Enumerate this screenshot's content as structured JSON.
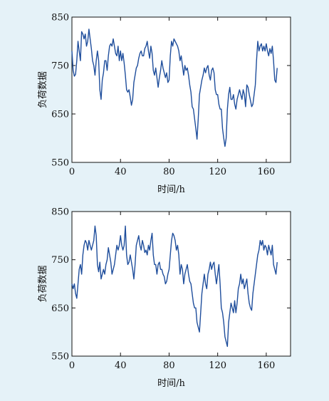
{
  "chart_data": [
    {
      "type": "line",
      "xlabel": "时间/h",
      "ylabel": "负荷数据",
      "xlim": [
        0,
        180
      ],
      "ylim": [
        550,
        850
      ],
      "xticks": [
        0,
        40,
        80,
        120,
        160
      ],
      "yticks": [
        550,
        650,
        750,
        850
      ],
      "xtick_labels": [
        "0",
        "40",
        "80",
        "120",
        "160"
      ],
      "ytick_labels": [
        "550",
        "650",
        "750",
        "850"
      ],
      "grid": false,
      "series_color": "#1f4e9c",
      "points": [
        [
          0,
          780
        ],
        [
          1,
          740
        ],
        [
          2,
          728
        ],
        [
          3,
          732
        ],
        [
          4,
          760
        ],
        [
          5,
          800
        ],
        [
          6,
          780
        ],
        [
          7,
          760
        ],
        [
          8,
          820
        ],
        [
          9,
          815
        ],
        [
          10,
          805
        ],
        [
          11,
          815
        ],
        [
          12,
          790
        ],
        [
          13,
          800
        ],
        [
          14,
          825
        ],
        [
          15,
          805
        ],
        [
          16,
          785
        ],
        [
          17,
          760
        ],
        [
          18,
          750
        ],
        [
          19,
          730
        ],
        [
          20,
          760
        ],
        [
          21,
          780
        ],
        [
          22,
          760
        ],
        [
          23,
          700
        ],
        [
          24,
          680
        ],
        [
          25,
          720
        ],
        [
          26,
          735
        ],
        [
          27,
          760
        ],
        [
          28,
          760
        ],
        [
          29,
          740
        ],
        [
          30,
          770
        ],
        [
          31,
          790
        ],
        [
          32,
          795
        ],
        [
          33,
          790
        ],
        [
          34,
          805
        ],
        [
          35,
          790
        ],
        [
          36,
          775
        ],
        [
          37,
          770
        ],
        [
          38,
          790
        ],
        [
          39,
          760
        ],
        [
          40,
          780
        ],
        [
          41,
          760
        ],
        [
          42,
          775
        ],
        [
          43,
          755
        ],
        [
          44,
          730
        ],
        [
          45,
          700
        ],
        [
          46,
          695
        ],
        [
          47,
          700
        ],
        [
          48,
          685
        ],
        [
          49,
          668
        ],
        [
          50,
          680
        ],
        [
          51,
          715
        ],
        [
          52,
          730
        ],
        [
          53,
          745
        ],
        [
          54,
          750
        ],
        [
          55,
          765
        ],
        [
          56,
          775
        ],
        [
          57,
          780
        ],
        [
          58,
          770
        ],
        [
          59,
          770
        ],
        [
          60,
          785
        ],
        [
          61,
          790
        ],
        [
          62,
          800
        ],
        [
          63,
          780
        ],
        [
          64,
          765
        ],
        [
          65,
          790
        ],
        [
          66,
          775
        ],
        [
          67,
          740
        ],
        [
          68,
          730
        ],
        [
          69,
          745
        ],
        [
          70,
          725
        ],
        [
          71,
          705
        ],
        [
          72,
          725
        ],
        [
          73,
          740
        ],
        [
          74,
          760
        ],
        [
          75,
          745
        ],
        [
          76,
          735
        ],
        [
          77,
          725
        ],
        [
          78,
          735
        ],
        [
          79,
          715
        ],
        [
          80,
          720
        ],
        [
          81,
          770
        ],
        [
          82,
          800
        ],
        [
          83,
          790
        ],
        [
          84,
          805
        ],
        [
          85,
          800
        ],
        [
          86,
          795
        ],
        [
          87,
          790
        ],
        [
          88,
          780
        ],
        [
          89,
          760
        ],
        [
          90,
          770
        ],
        [
          91,
          750
        ],
        [
          92,
          730
        ],
        [
          93,
          750
        ],
        [
          94,
          740
        ],
        [
          95,
          745
        ],
        [
          96,
          730
        ],
        [
          97,
          710
        ],
        [
          98,
          695
        ],
        [
          99,
          665
        ],
        [
          100,
          660
        ],
        [
          101,
          640
        ],
        [
          102,
          620
        ],
        [
          103,
          598
        ],
        [
          104,
          640
        ],
        [
          105,
          690
        ],
        [
          106,
          705
        ],
        [
          107,
          720
        ],
        [
          108,
          730
        ],
        [
          109,
          745
        ],
        [
          110,
          735
        ],
        [
          111,
          745
        ],
        [
          112,
          750
        ],
        [
          113,
          730
        ],
        [
          114,
          720
        ],
        [
          115,
          740
        ],
        [
          116,
          745
        ],
        [
          117,
          735
        ],
        [
          118,
          700
        ],
        [
          119,
          690
        ],
        [
          120,
          690
        ],
        [
          121,
          670
        ],
        [
          122,
          660
        ],
        [
          123,
          660
        ],
        [
          124,
          620
        ],
        [
          125,
          600
        ],
        [
          126,
          583
        ],
        [
          127,
          600
        ],
        [
          128,
          660
        ],
        [
          129,
          690
        ],
        [
          130,
          705
        ],
        [
          131,
          680
        ],
        [
          132,
          680
        ],
        [
          133,
          690
        ],
        [
          134,
          670
        ],
        [
          135,
          660
        ],
        [
          136,
          680
        ],
        [
          137,
          690
        ],
        [
          138,
          700
        ],
        [
          139,
          690
        ],
        [
          140,
          680
        ],
        [
          141,
          700
        ],
        [
          142,
          690
        ],
        [
          143,
          665
        ],
        [
          144,
          710
        ],
        [
          145,
          705
        ],
        [
          146,
          690
        ],
        [
          147,
          678
        ],
        [
          148,
          665
        ],
        [
          149,
          670
        ],
        [
          150,
          690
        ],
        [
          151,
          710
        ],
        [
          152,
          760
        ],
        [
          153,
          800
        ],
        [
          154,
          780
        ],
        [
          155,
          790
        ],
        [
          156,
          795
        ],
        [
          157,
          780
        ],
        [
          158,
          790
        ],
        [
          159,
          780
        ],
        [
          160,
          795
        ],
        [
          161,
          780
        ],
        [
          162,
          770
        ],
        [
          163,
          785
        ],
        [
          164,
          775
        ],
        [
          165,
          790
        ],
        [
          166,
          760
        ],
        [
          167,
          720
        ],
        [
          168,
          715
        ],
        [
          169,
          745
        ]
      ]
    },
    {
      "type": "line",
      "xlabel": "时间/h",
      "ylabel": "负荷数据",
      "xlim": [
        0,
        180
      ],
      "ylim": [
        550,
        850
      ],
      "xticks": [
        0,
        40,
        80,
        120,
        160
      ],
      "yticks": [
        550,
        650,
        750,
        850
      ],
      "xtick_labels": [
        "0",
        "40",
        "80",
        "120",
        "160"
      ],
      "ytick_labels": [
        "550",
        "650",
        "750",
        "850"
      ],
      "grid": false,
      "series_color": "#1f4e9c",
      "points": [
        [
          0,
          700
        ],
        [
          1,
          690
        ],
        [
          2,
          700
        ],
        [
          3,
          680
        ],
        [
          4,
          670
        ],
        [
          5,
          700
        ],
        [
          6,
          730
        ],
        [
          7,
          740
        ],
        [
          8,
          720
        ],
        [
          9,
          760
        ],
        [
          10,
          780
        ],
        [
          11,
          790
        ],
        [
          12,
          785
        ],
        [
          13,
          770
        ],
        [
          14,
          790
        ],
        [
          15,
          780
        ],
        [
          16,
          770
        ],
        [
          17,
          780
        ],
        [
          18,
          790
        ],
        [
          19,
          820
        ],
        [
          20,
          800
        ],
        [
          21,
          740
        ],
        [
          22,
          725
        ],
        [
          23,
          745
        ],
        [
          24,
          710
        ],
        [
          25,
          720
        ],
        [
          26,
          730
        ],
        [
          27,
          720
        ],
        [
          28,
          740
        ],
        [
          29,
          750
        ],
        [
          30,
          775
        ],
        [
          31,
          760
        ],
        [
          32,
          745
        ],
        [
          33,
          720
        ],
        [
          34,
          730
        ],
        [
          35,
          740
        ],
        [
          36,
          760
        ],
        [
          37,
          780
        ],
        [
          38,
          770
        ],
        [
          39,
          780
        ],
        [
          40,
          800
        ],
        [
          41,
          780
        ],
        [
          42,
          770
        ],
        [
          43,
          780
        ],
        [
          44,
          820
        ],
        [
          45,
          760
        ],
        [
          46,
          740
        ],
        [
          47,
          745
        ],
        [
          48,
          760
        ],
        [
          49,
          745
        ],
        [
          50,
          730
        ],
        [
          51,
          710
        ],
        [
          52,
          740
        ],
        [
          53,
          780
        ],
        [
          54,
          790
        ],
        [
          55,
          800
        ],
        [
          56,
          780
        ],
        [
          57,
          770
        ],
        [
          58,
          790
        ],
        [
          59,
          780
        ],
        [
          60,
          765
        ],
        [
          61,
          770
        ],
        [
          62,
          760
        ],
        [
          63,
          780
        ],
        [
          64,
          770
        ],
        [
          65,
          790
        ],
        [
          66,
          805
        ],
        [
          67,
          760
        ],
        [
          68,
          740
        ],
        [
          69,
          740
        ],
        [
          70,
          720
        ],
        [
          71,
          740
        ],
        [
          72,
          745
        ],
        [
          73,
          730
        ],
        [
          74,
          730
        ],
        [
          75,
          720
        ],
        [
          76,
          715
        ],
        [
          77,
          700
        ],
        [
          78,
          705
        ],
        [
          79,
          720
        ],
        [
          80,
          730
        ],
        [
          81,
          760
        ],
        [
          82,
          790
        ],
        [
          83,
          805
        ],
        [
          84,
          800
        ],
        [
          85,
          790
        ],
        [
          86,
          770
        ],
        [
          87,
          780
        ],
        [
          88,
          760
        ],
        [
          89,
          720
        ],
        [
          90,
          740
        ],
        [
          91,
          730
        ],
        [
          92,
          700
        ],
        [
          93,
          720
        ],
        [
          94,
          730
        ],
        [
          95,
          740
        ],
        [
          96,
          720
        ],
        [
          97,
          705
        ],
        [
          98,
          700
        ],
        [
          99,
          680
        ],
        [
          100,
          660
        ],
        [
          101,
          650
        ],
        [
          102,
          650
        ],
        [
          103,
          620
        ],
        [
          104,
          610
        ],
        [
          105,
          600
        ],
        [
          106,
          640
        ],
        [
          107,
          680
        ],
        [
          108,
          700
        ],
        [
          109,
          720
        ],
        [
          110,
          700
        ],
        [
          111,
          690
        ],
        [
          112,
          720
        ],
        [
          113,
          730
        ],
        [
          114,
          745
        ],
        [
          115,
          730
        ],
        [
          116,
          740
        ],
        [
          117,
          745
        ],
        [
          118,
          720
        ],
        [
          119,
          700
        ],
        [
          120,
          720
        ],
        [
          121,
          740
        ],
        [
          122,
          700
        ],
        [
          123,
          650
        ],
        [
          124,
          640
        ],
        [
          125,
          620
        ],
        [
          126,
          590
        ],
        [
          127,
          580
        ],
        [
          128,
          570
        ],
        [
          129,
          620
        ],
        [
          130,
          640
        ],
        [
          131,
          660
        ],
        [
          132,
          650
        ],
        [
          133,
          640
        ],
        [
          134,
          665
        ],
        [
          135,
          640
        ],
        [
          136,
          660
        ],
        [
          137,
          690
        ],
        [
          138,
          700
        ],
        [
          139,
          720
        ],
        [
          140,
          700
        ],
        [
          141,
          710
        ],
        [
          142,
          690
        ],
        [
          143,
          700
        ],
        [
          144,
          710
        ],
        [
          145,
          680
        ],
        [
          146,
          660
        ],
        [
          147,
          650
        ],
        [
          148,
          645
        ],
        [
          149,
          680
        ],
        [
          150,
          700
        ],
        [
          151,
          720
        ],
        [
          152,
          740
        ],
        [
          153,
          760
        ],
        [
          154,
          770
        ],
        [
          155,
          790
        ],
        [
          156,
          780
        ],
        [
          157,
          790
        ],
        [
          158,
          770
        ],
        [
          159,
          780
        ],
        [
          160,
          775
        ],
        [
          161,
          760
        ],
        [
          162,
          780
        ],
        [
          163,
          770
        ],
        [
          164,
          760
        ],
        [
          165,
          780
        ],
        [
          166,
          740
        ],
        [
          167,
          730
        ],
        [
          168,
          720
        ],
        [
          169,
          745
        ]
      ]
    }
  ]
}
